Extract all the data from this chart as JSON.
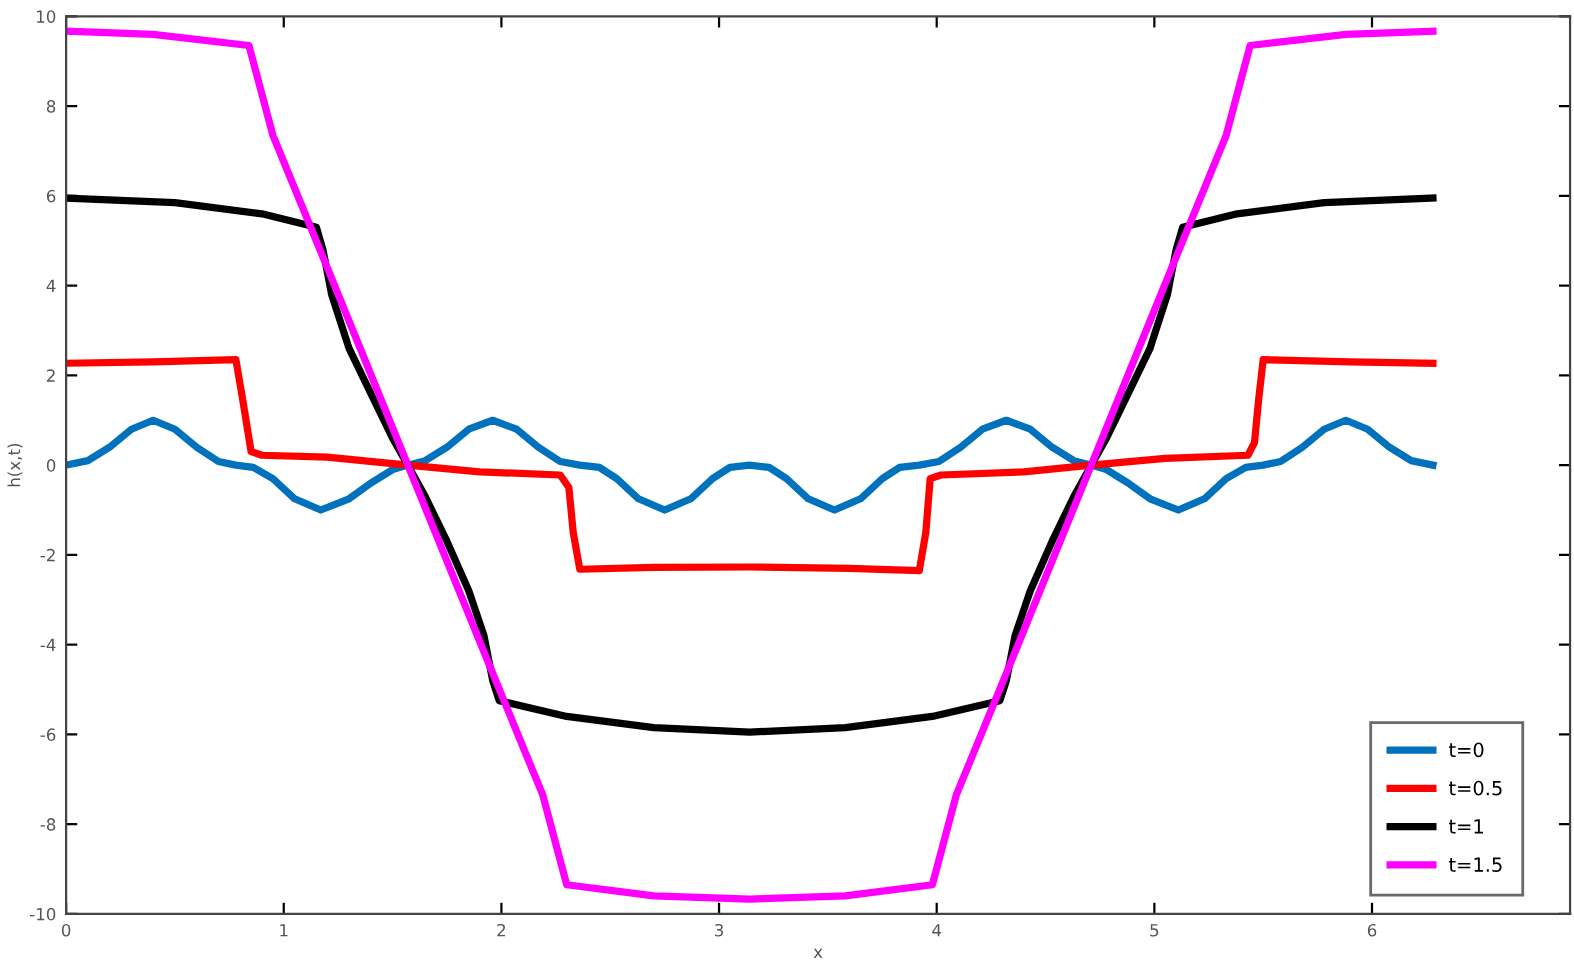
{
  "chart_data": {
    "type": "line",
    "xlabel": "x",
    "ylabel": "h(x,t)",
    "xlim": [
      0,
      6.91
    ],
    "ylim": [
      -10,
      10
    ],
    "xticks": [
      0,
      1,
      2,
      3,
      4,
      5,
      6
    ],
    "yticks": [
      -10,
      -8,
      -6,
      -4,
      -2,
      0,
      2,
      4,
      6,
      8,
      10
    ],
    "grid": false,
    "legend": "bottom right",
    "marker": "none",
    "line_style": "solid",
    "series": [
      {
        "name": "t=0",
        "color": "#0072bd",
        "x": [
          0,
          0.1,
          0.2,
          0.3,
          0.4,
          0.5,
          0.6,
          0.7,
          0.78,
          0.86,
          0.95,
          1.05,
          1.17,
          1.3,
          1.4,
          1.5,
          1.57,
          1.65,
          1.75,
          1.85,
          1.96,
          2.07,
          2.17,
          2.27,
          2.36,
          2.45,
          2.53,
          2.63,
          2.75,
          2.87,
          2.97,
          3.05,
          3.14,
          3.23,
          3.31,
          3.41,
          3.53,
          3.65,
          3.75,
          3.83,
          3.92,
          4.01,
          4.11,
          4.21,
          4.32,
          4.43,
          4.53,
          4.63,
          4.71,
          4.78,
          4.88,
          4.98,
          5.11,
          5.23,
          5.33,
          5.42,
          5.5,
          5.58,
          5.68,
          5.78,
          5.88,
          5.98,
          6.08,
          6.18,
          6.28
        ],
        "values": [
          0,
          0.1,
          0.4,
          0.8,
          1.0,
          0.8,
          0.4,
          0.08,
          0,
          -0.05,
          -0.3,
          -0.75,
          -1.0,
          -0.75,
          -0.4,
          -0.1,
          0,
          0.1,
          0.4,
          0.8,
          1.0,
          0.8,
          0.4,
          0.08,
          0,
          -0.05,
          -0.3,
          -0.75,
          -1.0,
          -0.75,
          -0.3,
          -0.05,
          0,
          -0.05,
          -0.3,
          -0.75,
          -1.0,
          -0.75,
          -0.3,
          -0.05,
          0,
          0.08,
          0.4,
          0.8,
          1.0,
          0.8,
          0.4,
          0.1,
          0,
          -0.1,
          -0.4,
          -0.75,
          -1.0,
          -0.75,
          -0.3,
          -0.05,
          0,
          0.08,
          0.4,
          0.8,
          1.0,
          0.8,
          0.4,
          0.1,
          0
        ]
      },
      {
        "name": "t=0.5",
        "color": "#ff0000",
        "x": [
          0,
          0.4,
          0.78,
          0.81,
          0.85,
          0.9,
          1.2,
          1.57,
          1.9,
          2.27,
          2.31,
          2.33,
          2.36,
          2.7,
          3.14,
          3.6,
          3.92,
          3.95,
          3.97,
          4.02,
          4.4,
          4.71,
          5.05,
          5.43,
          5.46,
          5.48,
          5.5,
          5.9,
          6.28
        ],
        "values": [
          2.27,
          2.3,
          2.35,
          1.5,
          0.3,
          0.22,
          0.18,
          0,
          -0.15,
          -0.22,
          -0.5,
          -1.5,
          -2.32,
          -2.28,
          -2.27,
          -2.3,
          -2.35,
          -1.5,
          -0.3,
          -0.22,
          -0.15,
          0,
          0.15,
          0.22,
          0.5,
          1.5,
          2.35,
          2.3,
          2.27
        ]
      },
      {
        "name": "t=1",
        "color": "#000000",
        "x": [
          0,
          0.5,
          0.9,
          1.15,
          1.18,
          1.22,
          1.3,
          1.4,
          1.5,
          1.57,
          1.65,
          1.75,
          1.85,
          1.92,
          1.96,
          1.99,
          2.3,
          2.7,
          3.14,
          3.58,
          3.98,
          4.29,
          4.32,
          4.36,
          4.43,
          4.53,
          4.63,
          4.71,
          4.78,
          4.88,
          4.98,
          5.06,
          5.1,
          5.13,
          5.38,
          5.78,
          6.28
        ],
        "values": [
          5.95,
          5.85,
          5.6,
          5.3,
          4.8,
          3.8,
          2.6,
          1.6,
          0.6,
          0,
          -0.7,
          -1.7,
          -2.8,
          -3.8,
          -4.8,
          -5.25,
          -5.6,
          -5.85,
          -5.95,
          -5.85,
          -5.6,
          -5.25,
          -4.8,
          -3.8,
          -2.8,
          -1.7,
          -0.7,
          0,
          0.6,
          1.6,
          2.6,
          3.8,
          4.8,
          5.3,
          5.6,
          5.85,
          5.95
        ]
      },
      {
        "name": "t=1.5",
        "color": "#ff00ff",
        "x": [
          0,
          0.4,
          0.84,
          0.95,
          1.2,
          1.57,
          1.94,
          2.19,
          2.3,
          2.7,
          3.14,
          3.58,
          3.98,
          4.09,
          4.34,
          4.71,
          5.08,
          5.33,
          5.44,
          5.88,
          6.28
        ],
        "values": [
          9.67,
          9.6,
          9.35,
          7.35,
          4.4,
          0,
          -4.4,
          -7.35,
          -9.35,
          -9.6,
          -9.67,
          -9.6,
          -9.35,
          -7.35,
          -4.4,
          0,
          4.4,
          7.35,
          9.35,
          9.6,
          9.67
        ]
      }
    ]
  }
}
